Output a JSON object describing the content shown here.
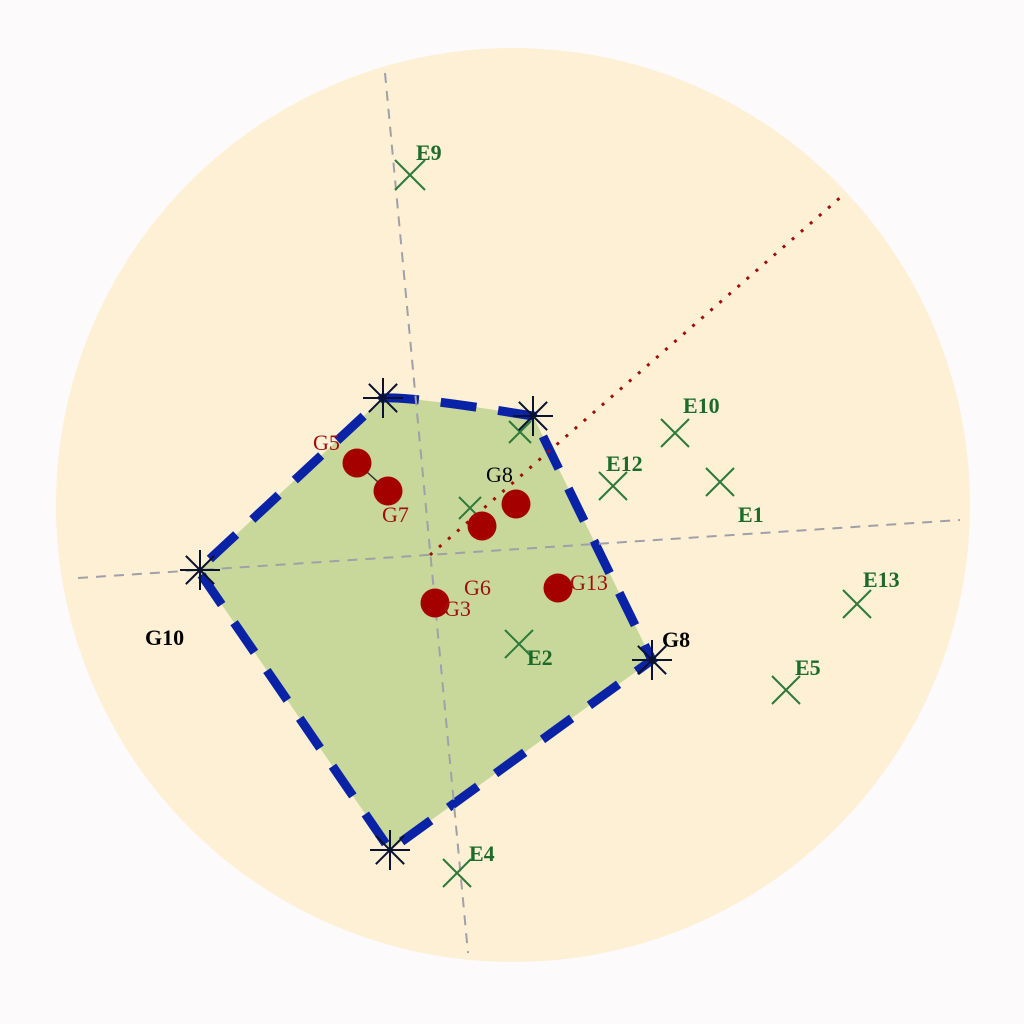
{
  "colors": {
    "background": "#fcfafa",
    "disc": "#fdf0d5",
    "region_fill": "#c8d89a",
    "region_border": "#0a23a6",
    "axis": "#a0a0a8",
    "ray": "#a10d0d",
    "e_marker": "#2d7a3a",
    "g_point": "#a50000",
    "vertex_marker": "#0b1230"
  },
  "labels": {
    "e9": "E9",
    "e10": "E10",
    "e12": "E12",
    "e1": "E1",
    "e13": "E13",
    "e5": "E5",
    "e2": "E2",
    "e4": "E4",
    "g5": "G5",
    "g7": "G7",
    "g8_inner": "G8",
    "g6": "G6",
    "g3": "G3",
    "g13": "G13",
    "g10": "G10",
    "g8_vertex": "G8"
  }
}
